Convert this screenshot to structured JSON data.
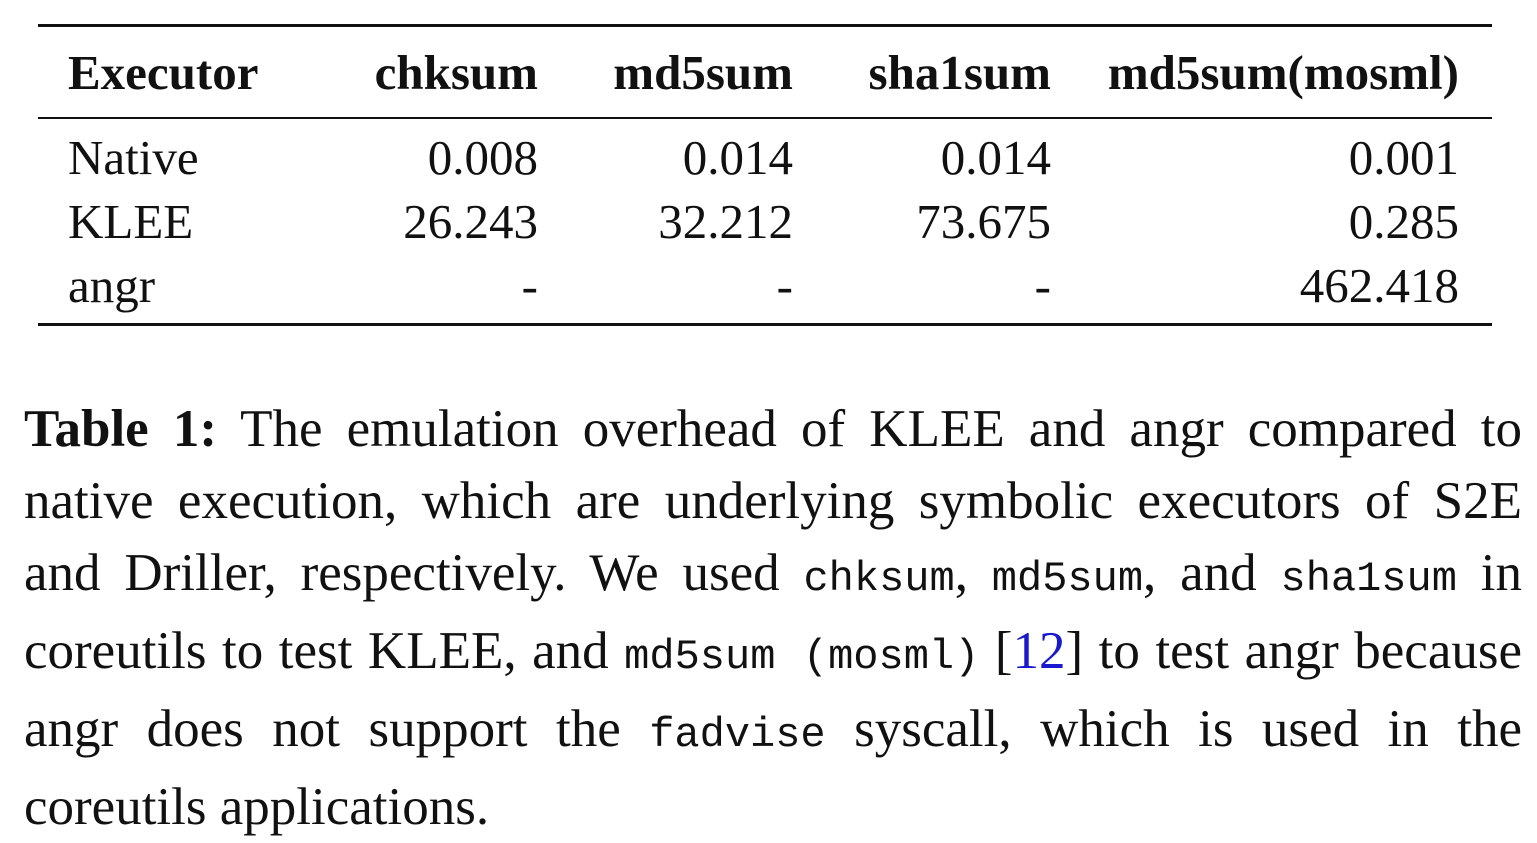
{
  "table": {
    "headers": [
      "Executor",
      "chksum",
      "md5sum",
      "sha1sum",
      "md5sum(mosml)"
    ],
    "rows": [
      [
        "Native",
        "0.008",
        "0.014",
        "0.014",
        "0.001"
      ],
      [
        "KLEE",
        "26.243",
        "32.212",
        "73.675",
        "0.285"
      ],
      [
        "angr",
        "-",
        "-",
        "-",
        "462.418"
      ]
    ]
  },
  "caption": {
    "label": "Table 1:",
    "t1": " The emulation overhead of KLEE and angr compared to native execution, which are underlying symbolic executors of S2E and Driller, respectively. We used ",
    "code1": "chksum",
    "t2": ", ",
    "code2": "md5sum",
    "t3": ", and ",
    "code3": "sha1sum",
    "t4": " in coreutils to test KLEE, and ",
    "code4": "md5sum (mosml)",
    "t5": " [",
    "cite": "12",
    "t6": "] to test angr because angr does not support the ",
    "code5": "fadvise",
    "t7": " syscall, which is used in the coreutils applications."
  }
}
